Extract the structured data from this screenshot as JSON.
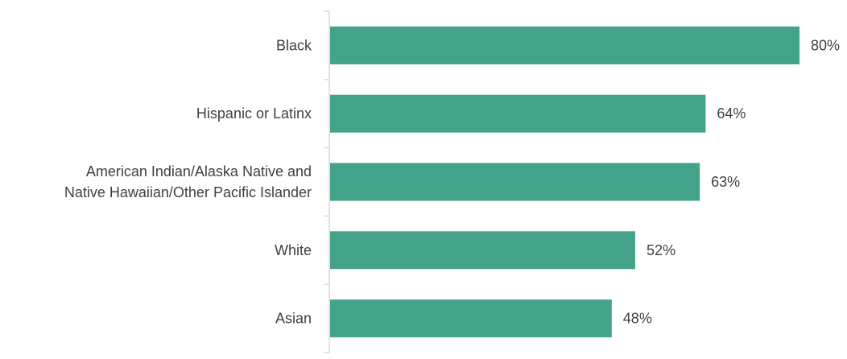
{
  "chart_data": {
    "type": "bar",
    "orientation": "horizontal",
    "categories": [
      [
        "Black"
      ],
      [
        "Hispanic or Latinx"
      ],
      [
        "American Indian/Alaska Native and",
        "Native Hawaiian/Other Pacific Islander"
      ],
      [
        "White"
      ],
      [
        "Asian"
      ]
    ],
    "values": [
      80,
      64,
      63,
      52,
      48
    ],
    "value_labels": [
      "80%",
      "64%",
      "63%",
      "52%",
      "48%"
    ],
    "xlim": [
      0,
      80
    ],
    "bar_color": "#43a28a",
    "axis_color": "#d9d9d9",
    "grid": false,
    "legend": "none"
  }
}
